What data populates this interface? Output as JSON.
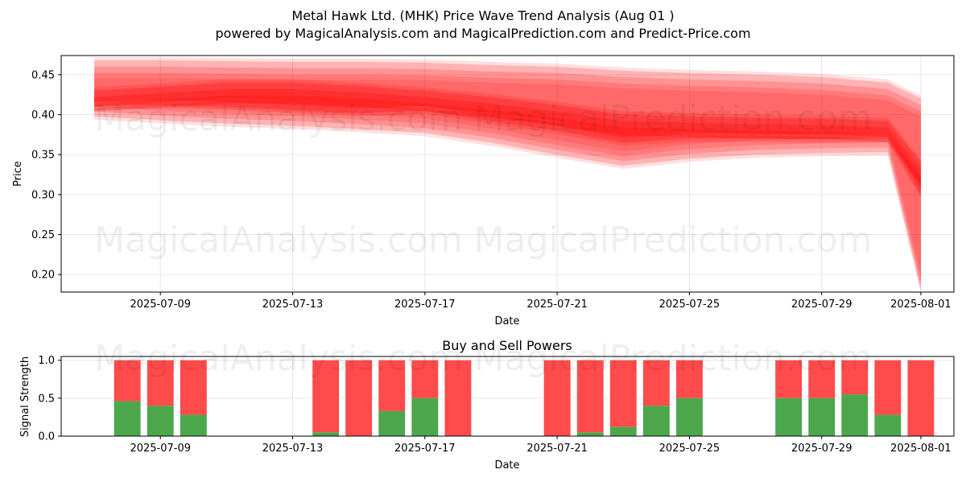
{
  "header": {
    "title": "Metal Hawk Ltd. (MHK) Price Wave Trend Analysis (Aug 01 )",
    "subtitle": "powered by MagicalAnalysis.com and MagicalPrediction.com and Predict-Price.com"
  },
  "watermarks": [
    "MagicalAnalysis.com",
    "MagicalPrediction.com"
  ],
  "colors": {
    "band": "#ff0000",
    "buy": "#4ca64c",
    "sell": "#ff4b4b",
    "grid": "#e6e6e6"
  },
  "chart_data": [
    {
      "type": "area",
      "title": "",
      "xlabel": "Date",
      "ylabel": "Price",
      "xlim": [
        "2025-07-06",
        "2025-08-02"
      ],
      "ylim": [
        0.178,
        0.474
      ],
      "x_ticks": [
        "2025-07-09",
        "2025-07-13",
        "2025-07-17",
        "2025-07-21",
        "2025-07-25",
        "2025-07-29",
        "2025-08-01"
      ],
      "y_ticks": [
        "0.20",
        "0.25",
        "0.30",
        "0.35",
        "0.40",
        "0.45"
      ],
      "grid": true,
      "series": [
        {
          "x": [
            "2025-07-07",
            "2025-07-09",
            "2025-07-11",
            "2025-07-13",
            "2025-07-15",
            "2025-07-17",
            "2025-07-19",
            "2025-07-21",
            "2025-07-23",
            "2025-07-25",
            "2025-07-27",
            "2025-07-29",
            "2025-07-31",
            "2025-08-01"
          ],
          "upper": [
            0.468,
            0.468,
            0.467,
            0.466,
            0.466,
            0.465,
            0.462,
            0.46,
            0.455,
            0.452,
            0.45,
            0.447,
            0.44,
            0.42
          ],
          "lower": [
            0.398,
            0.393,
            0.389,
            0.386,
            0.382,
            0.377,
            0.365,
            0.35,
            0.336,
            0.345,
            0.35,
            0.352,
            0.353,
            0.18
          ]
        },
        {
          "x": [
            "2025-07-07",
            "2025-07-09",
            "2025-07-11",
            "2025-07-13",
            "2025-07-15",
            "2025-07-17",
            "2025-07-19",
            "2025-07-21",
            "2025-07-23",
            "2025-07-25",
            "2025-07-27",
            "2025-07-29",
            "2025-07-31",
            "2025-08-01"
          ],
          "upper": [
            0.43,
            0.435,
            0.44,
            0.44,
            0.436,
            0.43,
            0.422,
            0.412,
            0.4,
            0.398,
            0.396,
            0.395,
            0.392,
            0.34
          ],
          "lower": [
            0.41,
            0.412,
            0.41,
            0.406,
            0.402,
            0.405,
            0.392,
            0.38,
            0.365,
            0.37,
            0.37,
            0.369,
            0.37,
            0.3
          ]
        }
      ]
    },
    {
      "type": "bar",
      "title": "Buy and Sell Powers",
      "xlabel": "Date",
      "ylabel": "Signal Strength",
      "xlim": [
        "2025-07-06",
        "2025-08-02"
      ],
      "ylim": [
        0,
        1.05
      ],
      "x_ticks": [
        "2025-07-09",
        "2025-07-13",
        "2025-07-17",
        "2025-07-21",
        "2025-07-25",
        "2025-07-29",
        "2025-08-01"
      ],
      "y_ticks": [
        "0.0",
        "0.5",
        "1.0"
      ],
      "grid": true,
      "categories": [
        "2025-07-08",
        "2025-07-09",
        "2025-07-10",
        "2025-07-14",
        "2025-07-15",
        "2025-07-16",
        "2025-07-17",
        "2025-07-18",
        "2025-07-21",
        "2025-07-22",
        "2025-07-23",
        "2025-07-24",
        "2025-07-25",
        "2025-07-28",
        "2025-07-29",
        "2025-07-30",
        "2025-07-31",
        "2025-08-01"
      ],
      "series": [
        {
          "name": "Buy",
          "values": [
            0.46,
            0.4,
            0.28,
            0.05,
            0.0,
            0.33,
            0.5,
            0.0,
            0.0,
            0.05,
            0.12,
            0.4,
            0.5,
            0.5,
            0.5,
            0.55,
            0.28,
            0.0
          ]
        },
        {
          "name": "Sell",
          "values": [
            0.54,
            0.6,
            0.72,
            0.95,
            1.0,
            0.67,
            0.5,
            1.0,
            1.0,
            0.95,
            0.88,
            0.6,
            0.5,
            0.5,
            0.5,
            0.45,
            0.72,
            1.0
          ]
        }
      ]
    }
  ]
}
